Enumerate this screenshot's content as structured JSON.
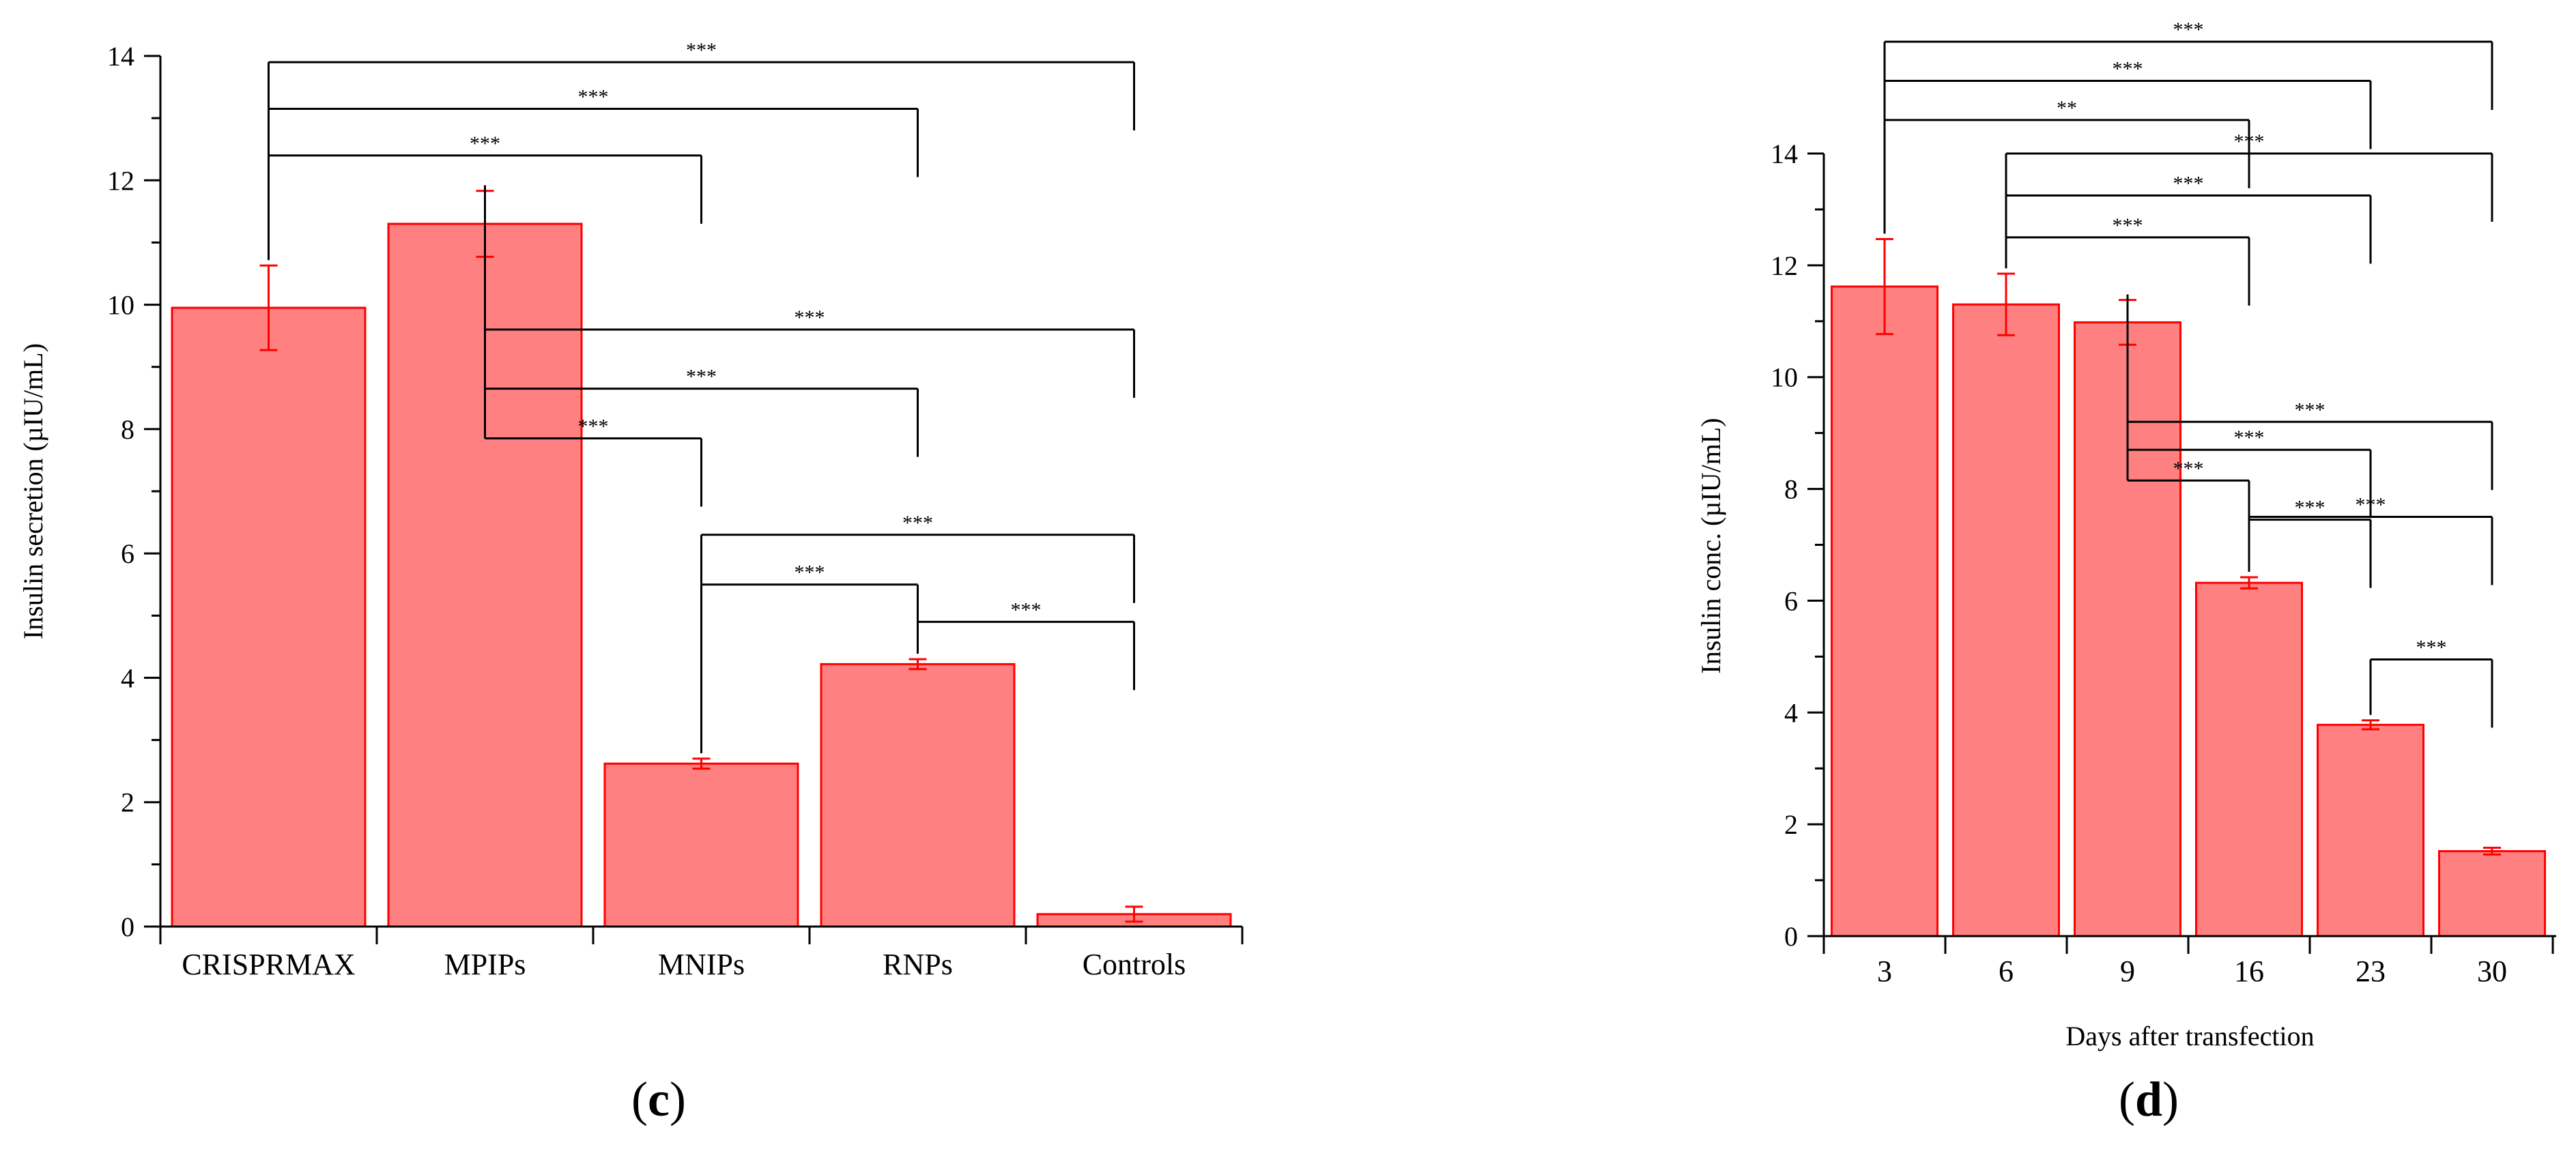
{
  "colors": {
    "bar_fill": "#ff8080",
    "bar_edge": "#ff0000",
    "error_bar": "#ff0000",
    "axis": "#000000",
    "bracket": "#000000"
  },
  "chart_data": [
    {
      "type": "bar",
      "panel_label": "c",
      "categories": [
        "CRISPRMAX",
        "MPIPs",
        "MNIPs",
        "RNPs",
        "Controls"
      ],
      "values": [
        9.95,
        11.3,
        2.62,
        4.22,
        0.2
      ],
      "errors": [
        0.68,
        0.53,
        0.08,
        0.08,
        0.12
      ],
      "ylabel": "Insulin secretion (µIU/mL)",
      "xlabel": "",
      "ylim": [
        0,
        14
      ],
      "yticks": [
        "0",
        "2",
        "4",
        "6",
        "8",
        "10",
        "12",
        "14"
      ],
      "grid": false,
      "legend": "none",
      "significance": [
        {
          "from": "CRISPRMAX",
          "to": "MNIPs",
          "label": "***",
          "y": 12.4
        },
        {
          "from": "CRISPRMAX",
          "to": "RNPs",
          "label": "***",
          "y": 13.15
        },
        {
          "from": "CRISPRMAX",
          "to": "Controls",
          "label": "***",
          "y": 13.9
        },
        {
          "from": "MPIPs",
          "to": "MNIPs",
          "label": "***",
          "y": 7.85
        },
        {
          "from": "MPIPs",
          "to": "RNPs",
          "label": "***",
          "y": 8.65
        },
        {
          "from": "MPIPs",
          "to": "Controls",
          "label": "***",
          "y": 9.6
        },
        {
          "from": "MNIPs",
          "to": "RNPs",
          "label": "***",
          "y": 5.5
        },
        {
          "from": "MNIPs",
          "to": "Controls",
          "label": "***",
          "y": 6.3
        },
        {
          "from": "RNPs",
          "to": "Controls",
          "label": "***",
          "y": 4.9
        }
      ]
    },
    {
      "type": "bar",
      "panel_label": "d",
      "categories": [
        "3",
        "6",
        "9",
        "16",
        "23",
        "30"
      ],
      "values": [
        11.62,
        11.3,
        10.98,
        6.32,
        3.78,
        1.52
      ],
      "errors": [
        0.85,
        0.55,
        0.4,
        0.1,
        0.08,
        0.06
      ],
      "ylabel": "Insulin conc. (µIU/mL)",
      "xlabel": "Days after transfection",
      "ylim": [
        0,
        14
      ],
      "yticks": [
        "0",
        "2",
        "4",
        "6",
        "8",
        "10",
        "12",
        "14"
      ],
      "grid": false,
      "legend": "none",
      "significance": [
        {
          "from": "3",
          "to": "16",
          "label": "**",
          "y": 14.6
        },
        {
          "from": "3",
          "to": "23",
          "label": "***",
          "y": 15.3
        },
        {
          "from": "3",
          "to": "30",
          "label": "***",
          "y": 16.0
        },
        {
          "from": "6",
          "to": "16",
          "label": "***",
          "y": 12.5
        },
        {
          "from": "6",
          "to": "23",
          "label": "***",
          "y": 13.25
        },
        {
          "from": "6",
          "to": "30",
          "label": "***",
          "y": 14.0
        },
        {
          "from": "9",
          "to": "16",
          "label": "***",
          "y": 8.15
        },
        {
          "from": "9",
          "to": "23",
          "label": "***",
          "y": 8.7
        },
        {
          "from": "9",
          "to": "30",
          "label": "***",
          "y": 9.2
        },
        {
          "from": "16",
          "to": "23",
          "label": "***",
          "y": 7.45
        },
        {
          "from": "16",
          "to": "30",
          "label": "***",
          "y": 7.5
        },
        {
          "from": "23",
          "to": "30",
          "label": "***",
          "y": 4.95
        }
      ]
    }
  ]
}
